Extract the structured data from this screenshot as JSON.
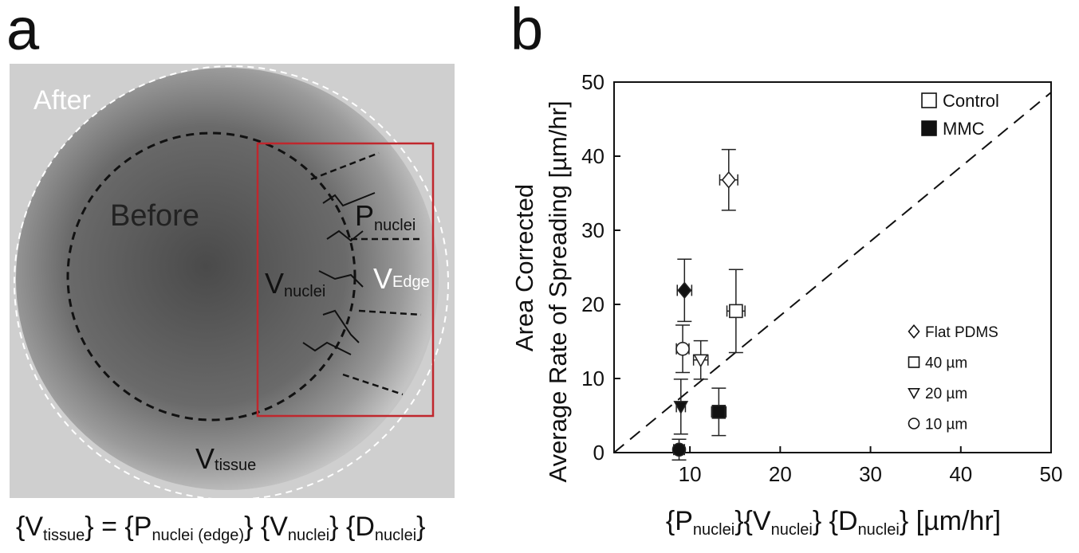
{
  "panel_a": {
    "label": "a",
    "after": "After",
    "before": "Before",
    "p_nuclei": [
      "P",
      "nuclei"
    ],
    "v_nuclei": [
      "V",
      "nuclei"
    ],
    "v_edge": [
      "V",
      "Edge"
    ],
    "v_tissue": [
      "V",
      "tissue"
    ],
    "equation": [
      "{V",
      "tissue",
      "} = {P",
      "nuclei (edge)",
      "} {V",
      "nuclei",
      "} {D",
      "nuclei",
      "}"
    ]
  },
  "panel_b_label": "b",
  "chart_data": {
    "type": "scatter",
    "ylabel": [
      "Area Corrected",
      "Average Rate of Spreading [µm/hr]"
    ],
    "xlabel": [
      "{P",
      "nuclei",
      "}{V",
      "nuclei",
      "} {D",
      "nuclei",
      "} [µm/hr]"
    ],
    "xlim": [
      1.6,
      50
    ],
    "ylim": [
      0,
      50
    ],
    "xticks": [
      10,
      20,
      30,
      40,
      50
    ],
    "yticks": [
      0,
      10,
      20,
      30,
      40,
      50
    ],
    "reference_line": {
      "x": [
        1.6,
        50
      ],
      "y": [
        0,
        48.6
      ]
    },
    "series": [
      {
        "name": "Control",
        "filled": false,
        "color": "#222222",
        "markers": [
          "diamond",
          "square",
          "triangle",
          "circle"
        ],
        "x": [
          14.3,
          15.1,
          11.2,
          9.2
        ],
        "y": [
          36.8,
          19.1,
          12.5,
          14.0
        ],
        "xerr": [
          1.0,
          1.0,
          0.8,
          0.7
        ],
        "yerr": [
          4.1,
          5.6,
          2.6,
          3.2
        ]
      },
      {
        "name": "MMC",
        "filled": true,
        "color": "#222222",
        "markers": [
          "diamond",
          "square",
          "triangle",
          "circle"
        ],
        "x": [
          9.4,
          13.2,
          9.0,
          8.8
        ],
        "y": [
          21.9,
          5.5,
          6.2,
          0.4
        ],
        "xerr": [
          0.8,
          0.8,
          0.5,
          0.6
        ],
        "yerr": [
          4.2,
          3.2,
          3.7,
          1.4
        ]
      }
    ],
    "marker_legend": [
      {
        "name": "Flat PDMS",
        "marker": "diamond"
      },
      {
        "name": "40 µm",
        "marker": "square"
      },
      {
        "name": "20 µm",
        "marker": "triangle"
      },
      {
        "name": "10 µm",
        "marker": "circle"
      }
    ]
  }
}
